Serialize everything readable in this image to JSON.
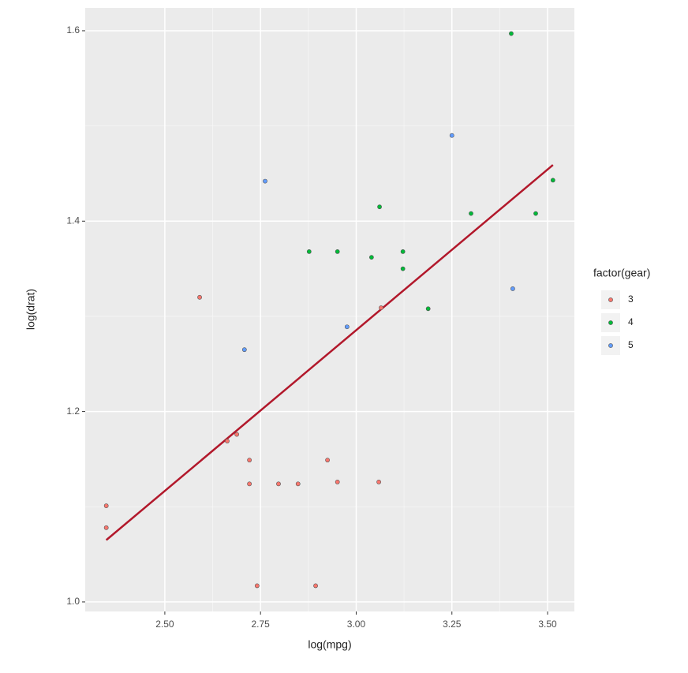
{
  "chart_data": {
    "type": "scatter",
    "x_label": "log(mpg)",
    "y_label": "log(drat)",
    "xlim": [
      2.292,
      3.57
    ],
    "ylim": [
      0.99,
      1.624
    ],
    "xticks": [
      {
        "value": 2.5,
        "label": "2.50"
      },
      {
        "value": 2.75,
        "label": "2.75"
      },
      {
        "value": 3.0,
        "label": "3.00"
      },
      {
        "value": 3.25,
        "label": "3.25"
      },
      {
        "value": 3.5,
        "label": "3.50"
      }
    ],
    "yticks": [
      {
        "value": 1.0,
        "label": "1.0"
      },
      {
        "value": 1.2,
        "label": "1.2"
      },
      {
        "value": 1.4,
        "label": "1.4"
      },
      {
        "value": 1.6,
        "label": "1.6"
      }
    ],
    "grid": true,
    "minor_grid": true,
    "legend_title": "factor(gear)",
    "legend_position": "right",
    "series": [
      {
        "name": "3",
        "color": "#F8766D",
        "x": [
          2.347,
          2.347,
          2.591,
          2.663,
          2.688,
          2.721,
          2.721,
          2.741,
          2.797,
          2.848,
          2.894,
          2.925,
          2.951,
          3.059,
          3.065
        ],
        "values": [
          1.101,
          1.078,
          1.32,
          1.169,
          1.176,
          1.149,
          1.124,
          1.017,
          1.124,
          1.124,
          1.017,
          1.149,
          1.126,
          1.126,
          1.309
        ]
      },
      {
        "name": "4",
        "color": "#00BA38",
        "x": [
          2.877,
          2.951,
          3.04,
          3.061,
          3.122,
          3.122,
          3.188,
          3.3,
          3.405,
          3.469,
          3.514
        ],
        "values": [
          1.368,
          1.368,
          1.362,
          1.415,
          1.368,
          1.35,
          1.308,
          1.408,
          1.597,
          1.408,
          1.443
        ]
      },
      {
        "name": "5",
        "color": "#619CFF",
        "x": [
          2.708,
          2.762,
          2.976,
          3.25,
          3.409
        ],
        "values": [
          1.265,
          1.442,
          1.289,
          1.49,
          1.329
        ]
      }
    ],
    "trend_line": {
      "x": [
        2.347,
        3.514
      ],
      "y": [
        1.065,
        1.459
      ],
      "color": "#b2182b"
    }
  }
}
